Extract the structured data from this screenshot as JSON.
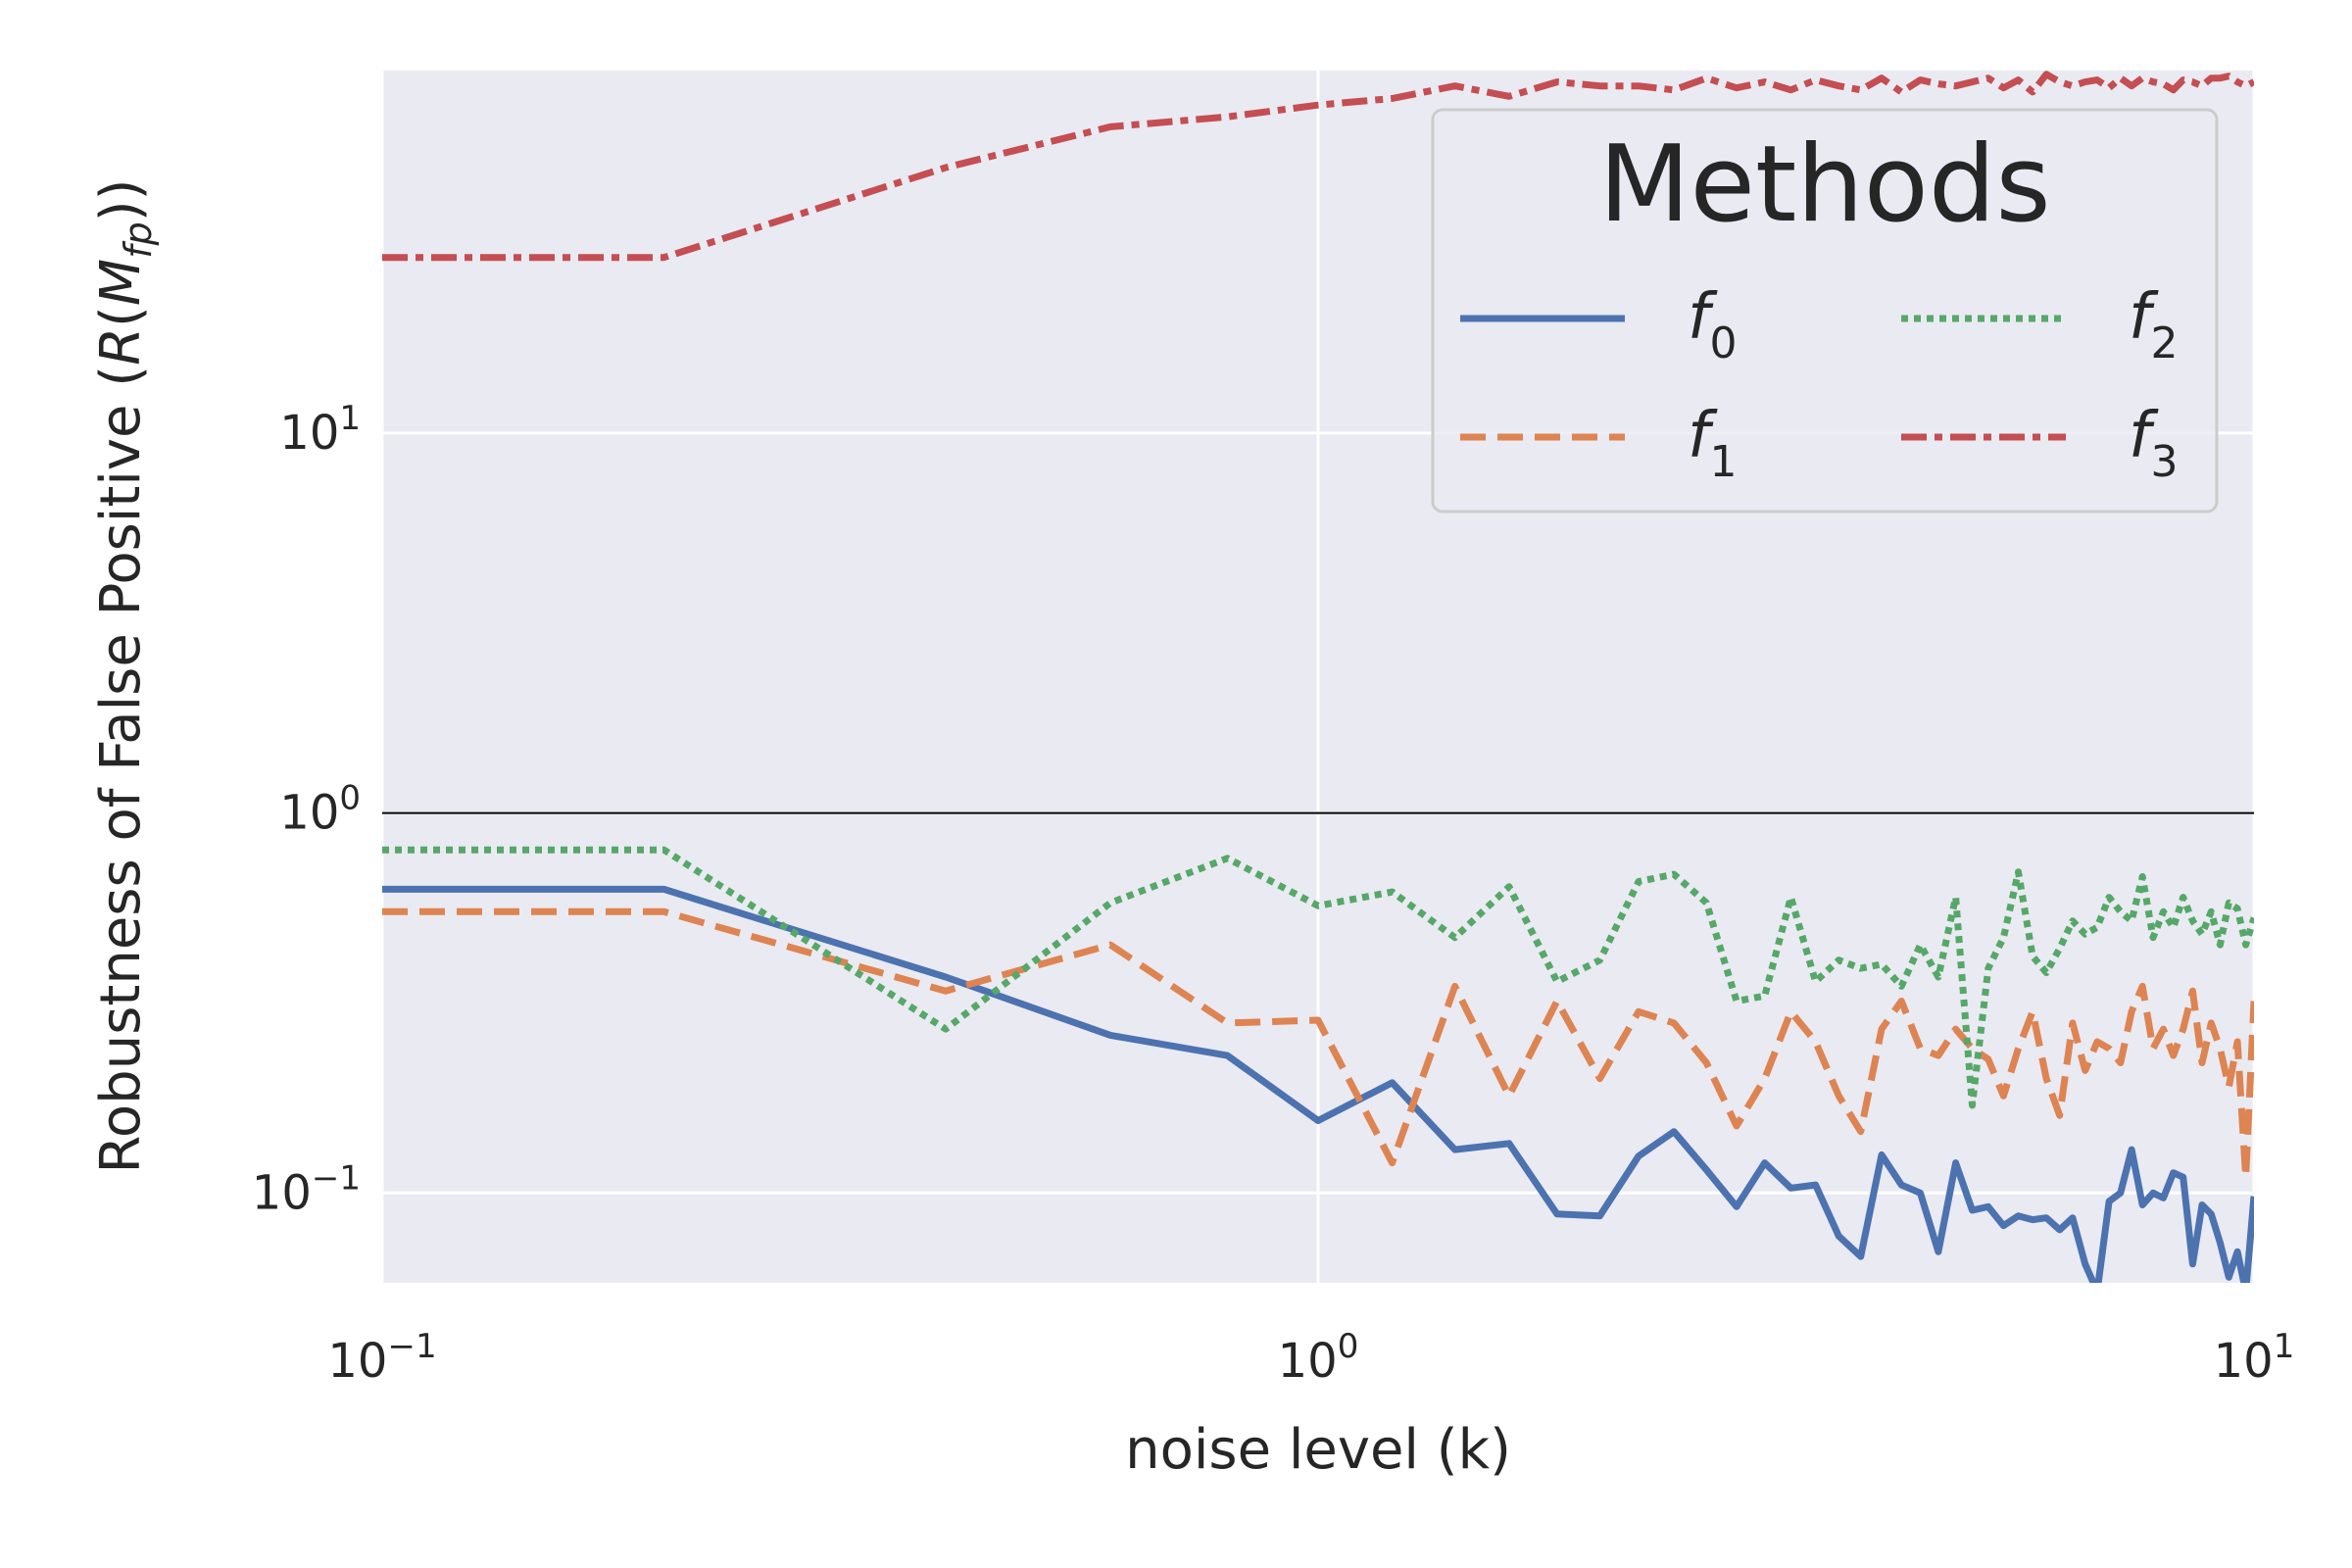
{
  "chart_data": {
    "type": "line",
    "title": "",
    "xlabel": "noise level (k)",
    "ylabel_prefix": "Robustness of False Positive (",
    "ylabel_math": "R(M_fp)",
    "ylabel_suffix": ")",
    "x_scale": "log",
    "y_scale": "log",
    "xlim": [
      0.1,
      10
    ],
    "ylim": [
      0.058,
      90
    ],
    "x_ticks": [
      {
        "value": 0.1,
        "base": "10",
        "exp": "−1"
      },
      {
        "value": 1,
        "base": "10",
        "exp": "0"
      },
      {
        "value": 10,
        "base": "10",
        "exp": "1"
      }
    ],
    "y_ticks": [
      {
        "value": 0.1,
        "base": "10",
        "exp": "−1"
      },
      {
        "value": 1,
        "base": "10",
        "exp": "0"
      },
      {
        "value": 10,
        "base": "10",
        "exp": "1"
      }
    ],
    "reference_line": 1,
    "grid": true,
    "legend": {
      "title": "Methods",
      "position": "top-right",
      "columns": 2
    },
    "series": [
      {
        "name": "f",
        "sub": "0",
        "color": "#4c72b0",
        "dash": "solid",
        "x": [
          0.1,
          0.2,
          0.4,
          0.6,
          0.8,
          1.0,
          1.2,
          1.4,
          1.6,
          1.8,
          2.0,
          2.2,
          2.4,
          2.6,
          2.8,
          3.0,
          3.2,
          3.4,
          3.6,
          3.8,
          4.0,
          4.2,
          4.4,
          4.6,
          4.8,
          5.0,
          5.2,
          5.4,
          5.6,
          5.8,
          6.0,
          6.2,
          6.4,
          6.6,
          6.8,
          7.0,
          7.2,
          7.4,
          7.6,
          7.8,
          8.0,
          8.2,
          8.4,
          8.6,
          8.8,
          9.0,
          9.2,
          9.4,
          9.6,
          9.8,
          10.0
        ],
        "y": [
          0.63,
          0.63,
          0.37,
          0.26,
          0.23,
          0.155,
          0.195,
          0.13,
          0.135,
          0.088,
          0.087,
          0.125,
          0.145,
          0.115,
          0.092,
          0.12,
          0.103,
          0.105,
          0.077,
          0.068,
          0.126,
          0.105,
          0.1,
          0.07,
          0.12,
          0.09,
          0.092,
          0.082,
          0.087,
          0.085,
          0.086,
          0.08,
          0.086,
          0.065,
          0.055,
          0.095,
          0.1,
          0.13,
          0.093,
          0.1,
          0.097,
          0.113,
          0.11,
          0.065,
          0.093,
          0.088,
          0.074,
          0.06,
          0.07,
          0.055,
          0.098
        ]
      },
      {
        "name": "f",
        "sub": "1",
        "color": "#dd8452",
        "dash": "dashed",
        "x": [
          0.1,
          0.2,
          0.4,
          0.6,
          0.8,
          1.0,
          1.2,
          1.4,
          1.6,
          1.8,
          2.0,
          2.2,
          2.4,
          2.6,
          2.8,
          3.0,
          3.2,
          3.4,
          3.6,
          3.8,
          4.0,
          4.2,
          4.4,
          4.6,
          4.8,
          5.0,
          5.2,
          5.4,
          5.6,
          5.8,
          6.0,
          6.2,
          6.4,
          6.6,
          6.8,
          7.0,
          7.2,
          7.4,
          7.6,
          7.8,
          8.0,
          8.2,
          8.4,
          8.6,
          8.8,
          9.0,
          9.2,
          9.4,
          9.6,
          9.8,
          10.0
        ],
        "y": [
          0.55,
          0.55,
          0.34,
          0.45,
          0.28,
          0.285,
          0.12,
          0.35,
          0.18,
          0.32,
          0.2,
          0.3,
          0.28,
          0.22,
          0.15,
          0.2,
          0.3,
          0.25,
          0.18,
          0.145,
          0.27,
          0.32,
          0.24,
          0.23,
          0.27,
          0.24,
          0.225,
          0.18,
          0.24,
          0.3,
          0.2,
          0.16,
          0.28,
          0.21,
          0.25,
          0.24,
          0.22,
          0.3,
          0.35,
          0.24,
          0.27,
          0.23,
          0.27,
          0.34,
          0.22,
          0.28,
          0.24,
          0.19,
          0.25,
          0.11,
          0.32
        ]
      },
      {
        "name": "f",
        "sub": "2",
        "color": "#55a868",
        "dash": "dotted",
        "x": [
          0.1,
          0.2,
          0.4,
          0.6,
          0.8,
          1.0,
          1.2,
          1.4,
          1.6,
          1.8,
          2.0,
          2.2,
          2.4,
          2.6,
          2.8,
          3.0,
          3.2,
          3.4,
          3.6,
          3.8,
          4.0,
          4.2,
          4.4,
          4.6,
          4.8,
          5.0,
          5.2,
          5.4,
          5.6,
          5.8,
          6.0,
          6.2,
          6.4,
          6.6,
          6.8,
          7.0,
          7.2,
          7.4,
          7.6,
          7.8,
          8.0,
          8.2,
          8.4,
          8.6,
          8.8,
          9.0,
          9.2,
          9.4,
          9.6,
          9.8,
          10.0
        ],
        "y": [
          0.8,
          0.8,
          0.27,
          0.58,
          0.76,
          0.57,
          0.62,
          0.47,
          0.64,
          0.36,
          0.41,
          0.66,
          0.69,
          0.58,
          0.32,
          0.33,
          0.6,
          0.36,
          0.41,
          0.39,
          0.4,
          0.35,
          0.45,
          0.37,
          0.6,
          0.17,
          0.39,
          0.47,
          0.7,
          0.42,
          0.38,
          0.44,
          0.52,
          0.48,
          0.5,
          0.6,
          0.55,
          0.52,
          0.68,
          0.47,
          0.55,
          0.5,
          0.6,
          0.52,
          0.48,
          0.55,
          0.45,
          0.58,
          0.56,
          0.45,
          0.53
        ]
      },
      {
        "name": "f",
        "sub": "3",
        "color": "#c44e52",
        "dash": "dashdot",
        "x": [
          0.1,
          0.2,
          0.4,
          0.6,
          0.8,
          1.0,
          1.2,
          1.4,
          1.6,
          1.8,
          2.0,
          2.2,
          2.4,
          2.6,
          2.8,
          3.0,
          3.2,
          3.4,
          3.6,
          3.8,
          4.0,
          4.2,
          4.4,
          4.6,
          4.8,
          5.0,
          5.2,
          5.4,
          5.6,
          5.8,
          6.0,
          6.2,
          6.4,
          6.6,
          6.8,
          7.0,
          7.2,
          7.4,
          7.6,
          7.8,
          8.0,
          8.2,
          8.4,
          8.6,
          8.8,
          9.0,
          9.2,
          9.4,
          9.6,
          9.8,
          10.0
        ],
        "y": [
          29,
          29,
          50,
          64,
          68,
          73,
          76,
          82,
          77,
          84,
          82,
          82,
          80,
          86,
          81,
          84,
          80,
          85,
          82,
          80,
          86,
          79,
          85,
          83,
          82,
          84,
          86,
          81,
          85,
          79,
          88,
          84,
          82,
          84,
          85,
          81,
          86,
          82,
          86,
          84,
          83,
          80,
          85,
          84,
          82,
          86,
          86,
          87,
          84,
          82,
          84
        ]
      }
    ]
  }
}
